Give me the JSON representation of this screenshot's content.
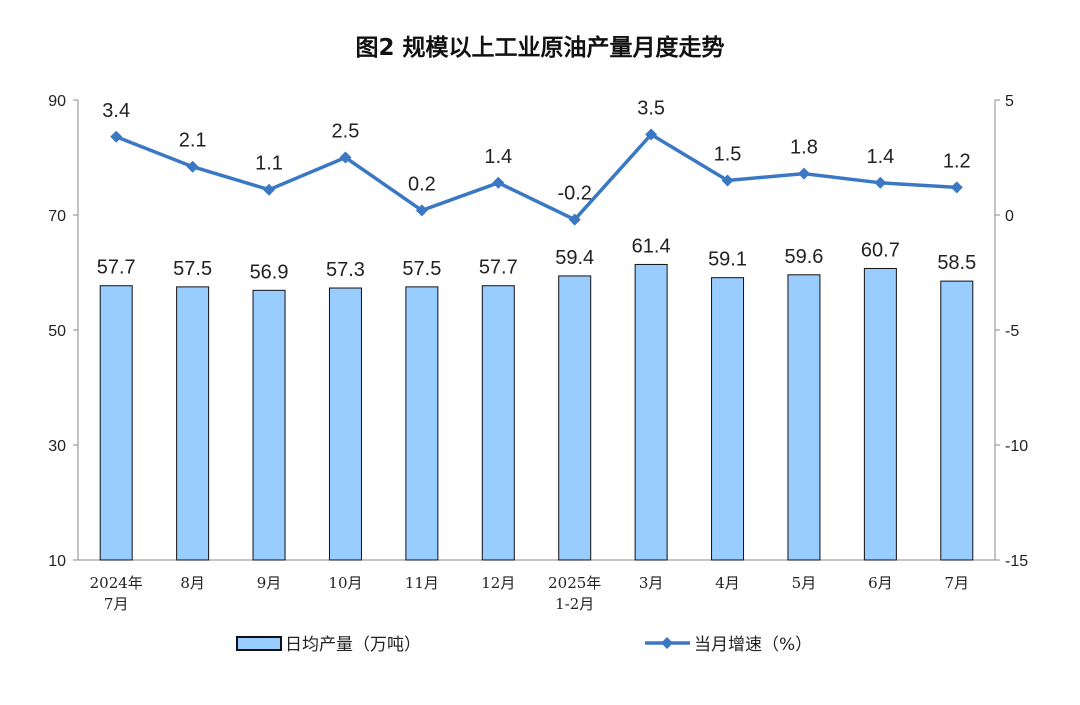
{
  "chart_data": {
    "title": "图2  规模以上工业原油产量月度走势",
    "type": "bar+line",
    "categories": [
      [
        "2024年",
        "7月"
      ],
      [
        "8月"
      ],
      [
        "9月"
      ],
      [
        "10月"
      ],
      [
        "11月"
      ],
      [
        "12月"
      ],
      [
        "2025年",
        "1-2月"
      ],
      [
        "3月"
      ],
      [
        "4月"
      ],
      [
        "5月"
      ],
      [
        "6月"
      ],
      [
        "7月"
      ]
    ],
    "series": [
      {
        "name": "日均产量（万吨）",
        "type": "bar",
        "axis": "left",
        "color": "#99CCFF",
        "values": [
          57.7,
          57.5,
          56.9,
          57.3,
          57.5,
          57.7,
          59.4,
          61.4,
          59.1,
          59.6,
          60.7,
          58.5
        ]
      },
      {
        "name": "当月增速（%）",
        "type": "line",
        "axis": "right",
        "color": "#3A78C4",
        "values": [
          3.4,
          2.1,
          1.1,
          2.5,
          0.2,
          1.4,
          -0.2,
          3.5,
          1.5,
          1.8,
          1.4,
          1.2
        ]
      }
    ],
    "y_left": {
      "lim": [
        10,
        90
      ],
      "ticks": [
        10,
        30,
        50,
        70,
        90
      ]
    },
    "y_right": {
      "lim": [
        -15,
        5
      ],
      "ticks": [
        -15,
        -10,
        -5,
        0,
        5
      ]
    },
    "grid": false,
    "legend": "bottom"
  }
}
